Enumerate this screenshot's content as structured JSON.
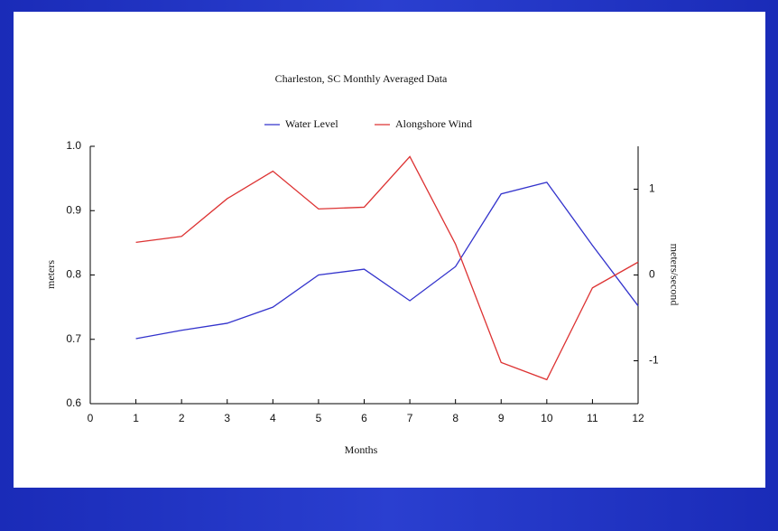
{
  "chart_data": {
    "type": "line",
    "title": "Charleston, SC Monthly Averaged Data",
    "x_label": "Months",
    "y_label": "meters",
    "y2_label": "meters/second",
    "x": [
      1,
      2,
      3,
      4,
      5,
      6,
      7,
      8,
      9,
      10,
      11,
      12
    ],
    "series": [
      {
        "name": "Water Level",
        "color": "#3333cc",
        "values": [
          0.701,
          0.714,
          0.725,
          0.75,
          0.8,
          0.809,
          0.76,
          0.813,
          0.926,
          0.944,
          0.846,
          0.752
        ]
      },
      {
        "name": "Alongshore Wind",
        "color": "#dd3333",
        "axis": "y2",
        "values": [
          0.38,
          0.45,
          0.89,
          1.21,
          0.77,
          0.79,
          1.38,
          0.36,
          -1.02,
          -1.22,
          -0.15,
          0.15
        ]
      }
    ],
    "xlim": [
      0,
      12
    ],
    "xticks": [
      0,
      1,
      2,
      3,
      4,
      5,
      6,
      7,
      8,
      9,
      10,
      11,
      12
    ],
    "ylim": [
      0.6,
      1.0
    ],
    "yticks": [
      {
        "value": 0.6,
        "label": "0.6"
      },
      {
        "value": 0.7,
        "label": "0.7"
      },
      {
        "value": 0.8,
        "label": "0.8"
      },
      {
        "value": 0.9,
        "label": "0.9"
      },
      {
        "value": 1.0,
        "label": "1.0"
      }
    ],
    "y2lim": [
      -1.5,
      1.5
    ],
    "y2ticks": [
      -1,
      0,
      1
    ],
    "legend": "top"
  }
}
